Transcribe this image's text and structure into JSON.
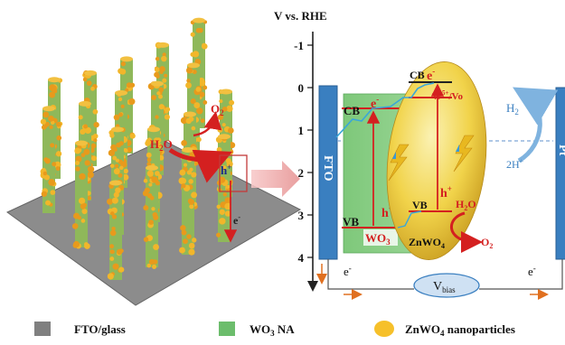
{
  "axis": {
    "title": "V vs. RHE",
    "ticks": [
      "-1",
      "0",
      "1",
      "2",
      "3",
      "4"
    ]
  },
  "electrodes": {
    "left": "FTO",
    "right": "Pt"
  },
  "wo3": {
    "cb": "CB",
    "vb": "VB",
    "name": "WO",
    "sub": "3",
    "electron": "e",
    "hole": "h"
  },
  "znwo4": {
    "cb": "CB",
    "vb": "VB",
    "name": "ZnWO",
    "sub": "4",
    "defect": "W",
    "defect_sup": "5+",
    "defect_tail": "/Vo",
    "electron": "e",
    "hole": "h"
  },
  "reactions": {
    "water_left": "H",
    "water_left_sub": "2",
    "water_left_tail": "O",
    "o2_left": "O",
    "o2_left_sub": "2",
    "hole_left": "h",
    "electron_left": "e",
    "water_right": "H",
    "water_right_sub": "2",
    "water_right_tail": "O",
    "o2_right": "O",
    "o2_right_sub": "2",
    "h2": "H",
    "h2_sub": "2",
    "proton": "2H",
    "plus": "+"
  },
  "circuit": {
    "e_left": "e",
    "e_right": "e",
    "minus": "-",
    "bias": "V",
    "bias_sub": "bias"
  },
  "legend": [
    {
      "label": "FTO/glass",
      "color": "#808080"
    },
    {
      "label": "WO",
      "sub": "3",
      "tail": " NA",
      "color": "#6cbd6c"
    },
    {
      "label": "ZnWO",
      "sub": "4",
      "tail": " nanoparticles",
      "color": "#f6c02a"
    }
  ],
  "colors": {
    "fto": "#3a7fc0",
    "wo3": "#7fc37a",
    "ellipse": "#f1d34a",
    "level": "#d42020",
    "electron_path": "#3aa7d8"
  }
}
